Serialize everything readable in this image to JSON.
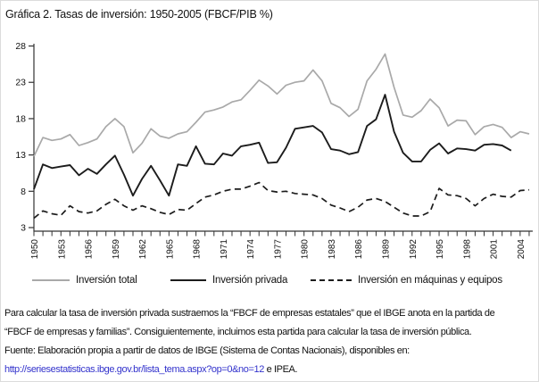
{
  "title": "Gráfica 2. Tasas de inversión: 1950-2005 (FBCF/PIB %)",
  "colors": {
    "total_line": "#a9a9a9",
    "private_line": "#1c1c1c",
    "machinery_line": "#1c1c1c",
    "axis": "#333333",
    "text": "#111111",
    "link_blue": "#3333cc"
  },
  "chart_data": {
    "type": "line",
    "title": "Gráfica 2. Tasas de inversión: 1950-2005 (FBCF/PIB %)",
    "xlabel": "",
    "ylabel": "",
    "ylim": [
      3,
      28
    ],
    "yticks": [
      3,
      8,
      13,
      18,
      23,
      28
    ],
    "xtick_label_step": 3,
    "grid": false,
    "legend_position": "bottom",
    "x": [
      1950,
      1951,
      1952,
      1953,
      1954,
      1955,
      1956,
      1957,
      1958,
      1959,
      1960,
      1961,
      1962,
      1963,
      1964,
      1965,
      1966,
      1967,
      1968,
      1969,
      1970,
      1971,
      1972,
      1973,
      1974,
      1975,
      1976,
      1977,
      1978,
      1979,
      1980,
      1981,
      1982,
      1983,
      1984,
      1985,
      1986,
      1987,
      1988,
      1989,
      1990,
      1991,
      1992,
      1993,
      1994,
      1995,
      1996,
      1997,
      1998,
      1999,
      2000,
      2001,
      2002,
      2003,
      2004,
      2005
    ],
    "series": [
      {
        "name": "Inversión total",
        "color": "#a9a9a9",
        "style": "solid",
        "width": 1.7,
        "values": [
          12.8,
          15.4,
          15.0,
          15.2,
          15.8,
          14.3,
          14.7,
          15.2,
          16.9,
          18.0,
          16.9,
          13.3,
          14.6,
          16.6,
          15.6,
          15.3,
          15.9,
          16.2,
          17.5,
          18.9,
          19.2,
          19.6,
          20.3,
          20.6,
          21.9,
          23.3,
          22.5,
          21.4,
          22.6,
          23.0,
          23.2,
          24.7,
          23.2,
          20.1,
          19.5,
          18.3,
          19.3,
          23.2,
          24.8,
          26.9,
          22.3,
          18.5,
          18.2,
          19.1,
          20.7,
          19.5,
          17.0,
          17.8,
          17.7,
          15.8,
          16.9,
          17.2,
          16.8,
          15.4,
          16.2,
          15.9
        ]
      },
      {
        "name": "Inversión privada",
        "color": "#1c1c1c",
        "style": "solid",
        "width": 1.9,
        "values": [
          8.3,
          11.7,
          11.2,
          11.4,
          11.6,
          10.2,
          11.1,
          10.4,
          11.7,
          12.9,
          10.3,
          7.4,
          9.7,
          11.5,
          9.5,
          7.4,
          11.7,
          11.5,
          14.2,
          11.8,
          11.7,
          13.2,
          12.9,
          14.2,
          14.4,
          14.7,
          11.9,
          12.0,
          14.0,
          16.6,
          16.8,
          17.0,
          16.1,
          13.8,
          13.6,
          13.1,
          13.4,
          17.0,
          17.9,
          21.3,
          16.2,
          13.3,
          12.1,
          12.1,
          13.7,
          14.6,
          13.2,
          13.9,
          13.8,
          13.6,
          14.4,
          14.5,
          14.3,
          13.6,
          null,
          null
        ]
      },
      {
        "name": "Inversión en máquinas y equipos",
        "color": "#1c1c1c",
        "style": "dashed",
        "width": 1.7,
        "values": [
          4.3,
          5.3,
          4.9,
          4.7,
          6.0,
          5.2,
          5.0,
          5.3,
          6.2,
          6.9,
          6.0,
          5.4,
          6.0,
          5.6,
          5.1,
          4.8,
          5.5,
          5.4,
          6.3,
          7.2,
          7.5,
          8.0,
          8.3,
          8.3,
          8.7,
          9.2,
          8.1,
          7.9,
          8.0,
          7.7,
          7.6,
          7.5,
          7.0,
          6.1,
          5.7,
          5.2,
          5.8,
          6.8,
          7.0,
          6.6,
          5.8,
          5.0,
          4.6,
          4.6,
          5.2,
          8.4,
          7.5,
          7.4,
          7.0,
          6.0,
          7.0,
          7.6,
          7.3,
          7.2,
          8.1,
          8.2
        ]
      }
    ]
  },
  "footer": {
    "note_line1": "Para calcular la tasa de inversión privada sustraemos la “FBCF de empresas estatales” que el IBGE anota en la partida de",
    "note_line2": "“FBCF de empresas y familias”. Consiguientemente, incluimos esta partida para calcular la tasa de inversión pública.",
    "source_line": "Fuente: Elaboración propia a partir de datos de IBGE (Sistema de Contas Nacionais), disponibles en:",
    "link_text": "http://seriesestatisticas.ibge.gov.br/lista_tema.aspx?op=0&no=12",
    "link_suffix": " e IPEA."
  }
}
